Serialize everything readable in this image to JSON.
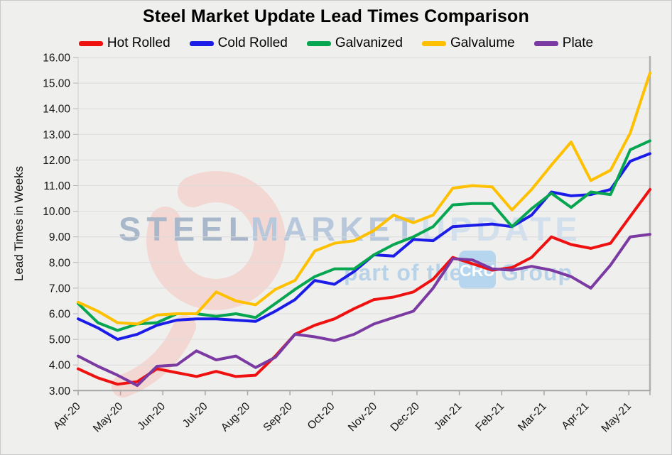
{
  "title": "Steel Market Update Lead Times Comparison",
  "y_axis": {
    "title": "Lead Times in Weeks",
    "tick_labels": [
      "16.00",
      "15.00",
      "14.00",
      "13.00",
      "12.00",
      "11.00",
      "10.00",
      "9.00",
      "8.00",
      "7.00",
      "6.00",
      "5.00",
      "4.00",
      "3.00"
    ],
    "max": 16,
    "min": 3,
    "step": 1
  },
  "x_axis": {
    "tick_labels": [
      "Apr-20",
      "May-20",
      "Jun-20",
      "Jul-20",
      "Aug-20",
      "Sep-20",
      "Oct-20",
      "Nov-20",
      "Dec-20",
      "Jan-21",
      "Feb-21",
      "Mar-21",
      "Apr-21",
      "May-21"
    ],
    "note": "monthly tick labels, data plotted biweekly"
  },
  "watermark": {
    "word1": "STEEL",
    "word2": "MARKET",
    "word3": "UPDATE",
    "tagline_left": "part of the",
    "tagline_logo": "CRU",
    "tagline_right": "Group",
    "crescent_color": "#f3d7d2",
    "word1_color": "#a8b7ca",
    "word2_color": "#b7c8dc",
    "word3_color": "#d2dfec",
    "tagline_color": "#b8d2e8",
    "logo_box_color": "#b5d6ee",
    "logo_text_color": "#ffffff"
  },
  "chart_data": {
    "type": "line",
    "title": "Steel Market Update Lead Times Comparison",
    "ylabel": "Lead Times in Weeks",
    "xlabel": "",
    "ylim": [
      3,
      16
    ],
    "grid": true,
    "legend_position": "top",
    "frequency": "biweekly (about 2 points per labeled month)",
    "categories": [
      "Apr-20",
      "Apr-20",
      "Apr-20",
      "May-20",
      "May-20",
      "Jun-20",
      "Jun-20",
      "Jul-20",
      "Jul-20",
      "Aug-20",
      "Aug-20",
      "Sep-20",
      "Sep-20",
      "Oct-20",
      "Oct-20",
      "Nov-20",
      "Nov-20",
      "Nov-20",
      "Dec-20",
      "Dec-20",
      "Jan-21",
      "Jan-21",
      "Feb-21",
      "Feb-21",
      "Mar-21",
      "Mar-21",
      "Apr-21",
      "Apr-21",
      "May-21",
      "May-21"
    ],
    "series": [
      {
        "name": "Hot Rolled",
        "color": "#ef1010",
        "values": [
          3.85,
          3.5,
          3.25,
          3.35,
          3.85,
          3.7,
          3.55,
          3.75,
          3.55,
          3.6,
          4.35,
          5.2,
          5.55,
          5.8,
          6.2,
          6.55,
          6.65,
          6.85,
          7.35,
          8.2,
          7.95,
          7.7,
          7.8,
          8.2,
          9.0,
          8.7,
          8.55,
          8.75,
          9.8,
          10.85
        ]
      },
      {
        "name": "Cold Rolled",
        "color": "#1c1ce8",
        "values": [
          5.8,
          5.45,
          5.0,
          5.2,
          5.55,
          5.75,
          5.8,
          5.8,
          5.75,
          5.7,
          6.1,
          6.55,
          7.3,
          7.15,
          7.65,
          8.3,
          8.25,
          8.9,
          8.85,
          9.4,
          9.45,
          9.5,
          9.4,
          9.85,
          10.75,
          10.6,
          10.65,
          10.85,
          11.95,
          12.25
        ]
      },
      {
        "name": "Galvanized",
        "color": "#06a550",
        "values": [
          6.4,
          5.65,
          5.35,
          5.6,
          5.65,
          6.0,
          6.0,
          5.9,
          6.0,
          5.85,
          6.4,
          6.95,
          7.45,
          7.75,
          7.75,
          8.3,
          8.7,
          9.0,
          9.4,
          10.25,
          10.3,
          10.3,
          9.4,
          10.1,
          10.7,
          10.15,
          10.75,
          10.65,
          12.4,
          12.75
        ]
      },
      {
        "name": "Galvalume",
        "color": "#ffc000",
        "values": [
          6.45,
          6.1,
          5.65,
          5.6,
          5.95,
          6.0,
          6.0,
          6.85,
          6.5,
          6.35,
          6.95,
          7.3,
          8.45,
          8.75,
          8.85,
          9.25,
          9.85,
          9.55,
          9.85,
          10.9,
          11.0,
          10.95,
          10.05,
          10.85,
          11.8,
          12.7,
          11.2,
          11.6,
          13.05,
          15.4
        ]
      },
      {
        "name": "Plate",
        "color": "#7a3aa2",
        "values": [
          4.35,
          3.95,
          3.6,
          3.2,
          3.95,
          4.0,
          4.55,
          4.2,
          4.35,
          3.9,
          4.3,
          5.2,
          5.1,
          4.95,
          5.2,
          5.6,
          5.85,
          6.1,
          7.0,
          8.15,
          8.1,
          7.75,
          7.7,
          7.85,
          7.7,
          7.45,
          7.0,
          7.9,
          9.0,
          9.1
        ]
      }
    ],
    "style": {
      "background": "#efefee",
      "gridline_color": "#dcdcdc",
      "axis_color": "#a6a6a6",
      "border_color": "#bdbdbd",
      "text_color": "#141414",
      "line_width": 4
    }
  }
}
